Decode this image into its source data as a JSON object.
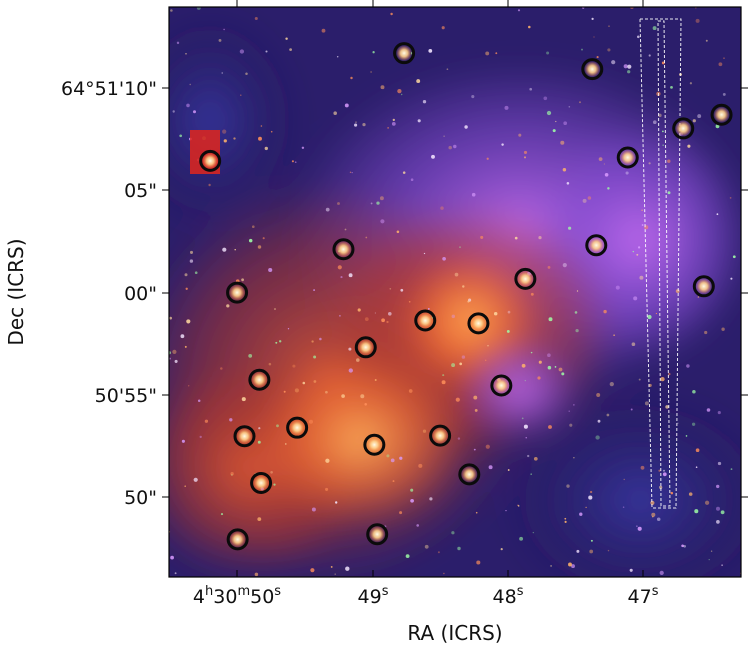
{
  "axes": {
    "x_title": "RA (ICRS)",
    "y_title": "Dec (ICRS)"
  },
  "x_ticks": [
    {
      "main": "4",
      "h": "h",
      "mid": "30",
      "m": "m",
      "tail": "50",
      "s": "s"
    },
    {
      "main": "49",
      "s": "s"
    },
    {
      "main": "48",
      "s": "s"
    },
    {
      "main": "47",
      "s": "s"
    }
  ],
  "y_ticks": [
    "64°51'10\"",
    "05\"",
    "00\"",
    "50'55\"",
    "50\""
  ],
  "colors": {
    "background_deep": "#2b1e6b",
    "nebula_violet": "#8a4fd8",
    "nebula_red": "#d8432a",
    "core_orange": "#ff8a3a",
    "marker_ring": "#0b0b0b",
    "slit_outline": "#ffffff"
  },
  "markers": [
    {
      "a": 0.072,
      "b": 0.27
    },
    {
      "a": 0.411,
      "b": 0.081
    },
    {
      "a": 0.74,
      "b": 0.109
    },
    {
      "a": 0.802,
      "b": 0.264
    },
    {
      "a": 0.899,
      "b": 0.213
    },
    {
      "a": 0.966,
      "b": 0.189
    },
    {
      "a": 0.305,
      "b": 0.425
    },
    {
      "a": 0.747,
      "b": 0.418
    },
    {
      "a": 0.935,
      "b": 0.49
    },
    {
      "a": 0.119,
      "b": 0.501
    },
    {
      "a": 0.623,
      "b": 0.477
    },
    {
      "a": 0.448,
      "b": 0.55
    },
    {
      "a": 0.541,
      "b": 0.555
    },
    {
      "a": 0.344,
      "b": 0.597
    },
    {
      "a": 0.158,
      "b": 0.654
    },
    {
      "a": 0.581,
      "b": 0.664
    },
    {
      "a": 0.224,
      "b": 0.738
    },
    {
      "a": 0.132,
      "b": 0.753
    },
    {
      "a": 0.359,
      "b": 0.768
    },
    {
      "a": 0.474,
      "b": 0.752
    },
    {
      "a": 0.525,
      "b": 0.82
    },
    {
      "a": 0.161,
      "b": 0.835
    },
    {
      "a": 0.12,
      "b": 0.934
    },
    {
      "a": 0.364,
      "b": 0.925
    }
  ]
}
